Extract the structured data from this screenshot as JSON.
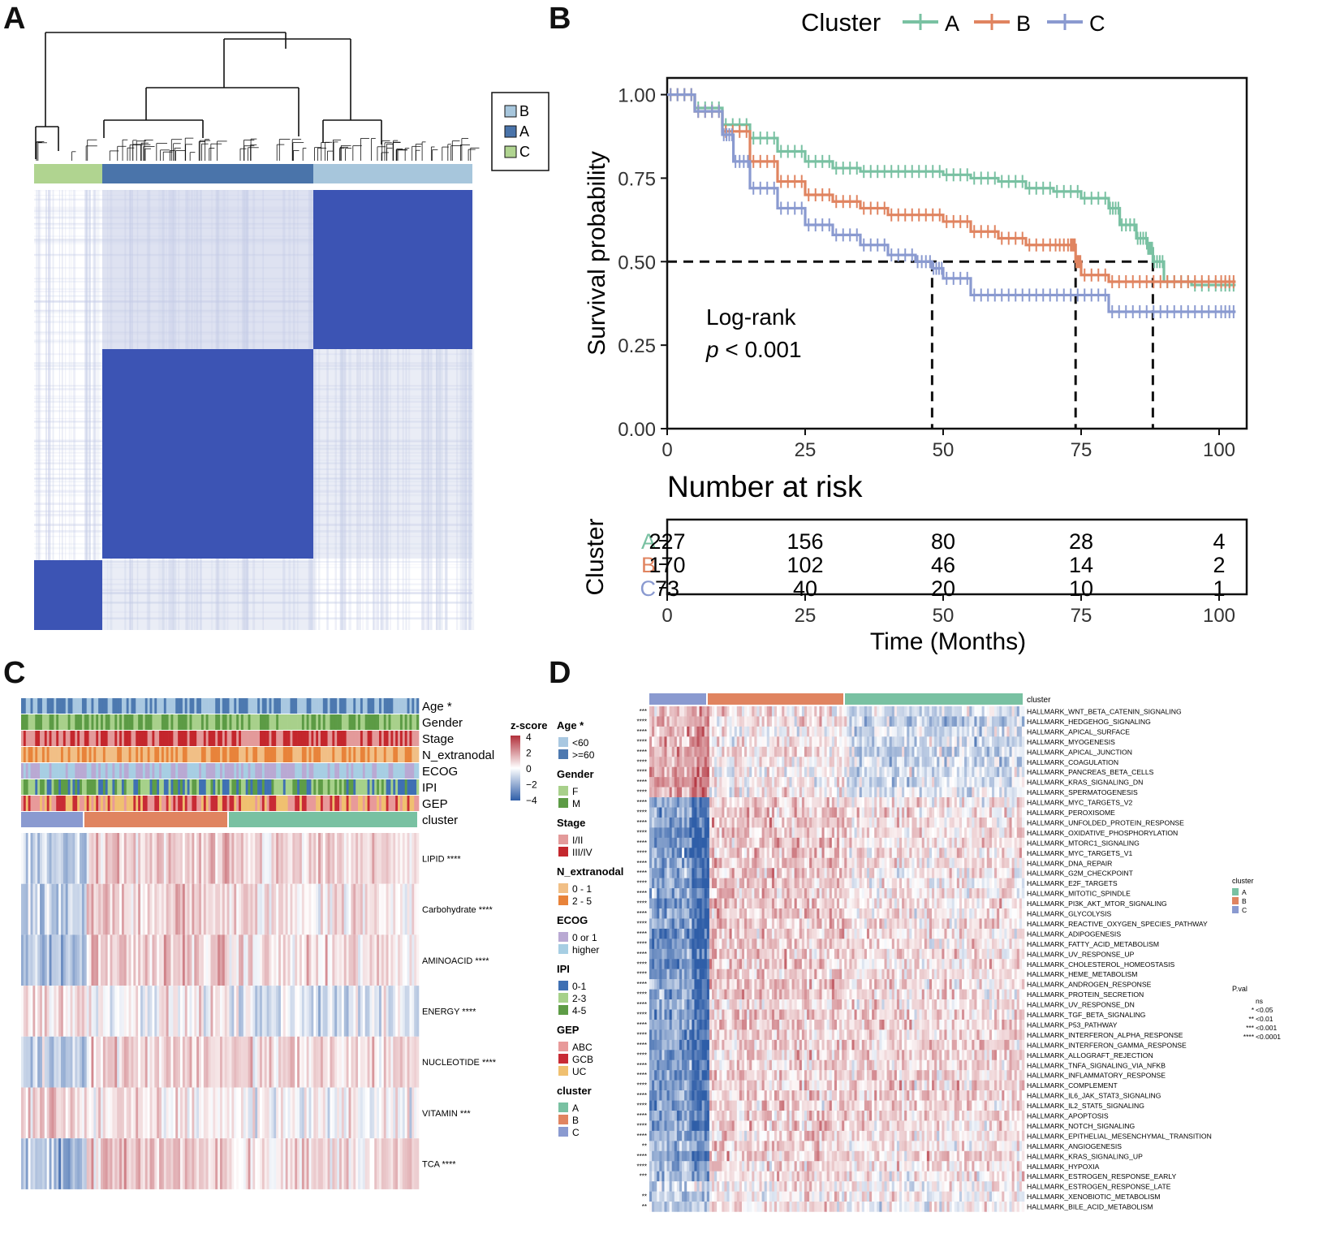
{
  "panels": {
    "a": "A",
    "b": "B",
    "c": "C",
    "d": "D"
  },
  "panel_a": {
    "legend": [
      "B",
      "A",
      "C"
    ]
  },
  "colors": {
    "A": "#79c1a2",
    "B": "#e08460",
    "C": "#8a9ad0",
    "consensus_dark": "#3c54b4",
    "consensus_light": "#c2cae6",
    "a_bar_B": "#a7c6dc",
    "a_bar_A": "#4a74aa",
    "a_bar_C": "#b0d490",
    "heat_red": "#b12f3a",
    "heat_blue": "#2f5ea8"
  },
  "chart_data": [
    {
      "type": "line",
      "legend": {
        "title": "Cluster",
        "entries": [
          "A",
          "B",
          "C"
        ],
        "position": "top"
      },
      "ylabel": "Survival probability",
      "yticks": [
        "0.00",
        "0.25",
        "0.50",
        "0.75",
        "1.00"
      ],
      "ylim": [
        0,
        1.05
      ],
      "xlim": [
        0,
        105
      ],
      "xticks": [
        "0",
        "25",
        "50",
        "75",
        "100"
      ],
      "annotation": {
        "line1": "Log-rank",
        "p_prefix": "p",
        "p_text": " < 0.001"
      },
      "medians": [
        48,
        74,
        88
      ],
      "series": [
        {
          "name": "A",
          "x": [
            0,
            5,
            10,
            15,
            20,
            25,
            30,
            35,
            40,
            45,
            50,
            55,
            60,
            65,
            70,
            75,
            80,
            82,
            85,
            87,
            88,
            90,
            95,
            100,
            103
          ],
          "y": [
            1,
            0.96,
            0.91,
            0.87,
            0.83,
            0.8,
            0.78,
            0.77,
            0.77,
            0.77,
            0.76,
            0.75,
            0.74,
            0.72,
            0.71,
            0.69,
            0.66,
            0.61,
            0.57,
            0.54,
            0.5,
            0.44,
            0.43,
            0.43,
            0.43
          ]
        },
        {
          "name": "B",
          "x": [
            0,
            5,
            10,
            15,
            20,
            25,
            30,
            35,
            40,
            45,
            50,
            55,
            60,
            65,
            70,
            73,
            74,
            75,
            80,
            85,
            90,
            95,
            100,
            103
          ],
          "y": [
            1,
            0.95,
            0.89,
            0.8,
            0.74,
            0.7,
            0.68,
            0.66,
            0.64,
            0.64,
            0.62,
            0.59,
            0.57,
            0.55,
            0.55,
            0.55,
            0.5,
            0.46,
            0.44,
            0.44,
            0.44,
            0.44,
            0.44,
            0.44
          ]
        },
        {
          "name": "C",
          "x": [
            0,
            5,
            10,
            12,
            15,
            20,
            25,
            30,
            35,
            40,
            45,
            48,
            50,
            55,
            60,
            65,
            70,
            75,
            80,
            85,
            90,
            95,
            100,
            103
          ],
          "y": [
            1,
            0.95,
            0.88,
            0.8,
            0.72,
            0.66,
            0.61,
            0.58,
            0.55,
            0.52,
            0.5,
            0.48,
            0.45,
            0.4,
            0.4,
            0.4,
            0.4,
            0.4,
            0.35,
            0.35,
            0.35,
            0.35,
            0.35,
            0.35
          ]
        }
      ]
    },
    {
      "type": "table",
      "title": "Number at risk",
      "ylabel": "Cluster",
      "xlabel": "Time (Months)",
      "xticks": [
        "0",
        "25",
        "50",
        "75",
        "100"
      ],
      "rows": [
        {
          "name": "A",
          "values": [
            "227",
            "156",
            "80",
            "28",
            "4"
          ]
        },
        {
          "name": "B",
          "values": [
            "170",
            "102",
            "46",
            "14",
            "2"
          ]
        },
        {
          "name": "C",
          "values": [
            "73",
            "40",
            "20",
            "10",
            "1"
          ]
        }
      ]
    },
    {
      "type": "heatmap",
      "annotations": [
        "Age *",
        "Gender",
        "Stage",
        "N_extranodal",
        "ECOG",
        "IPI",
        "GEP",
        "cluster"
      ],
      "rows": [
        {
          "label": "LIPID ****",
          "cluster_means": [
            -0.8,
            0.5,
            0.4
          ]
        },
        {
          "label": "Carbohydrate ****",
          "cluster_means": [
            -0.9,
            0.6,
            0.3
          ]
        },
        {
          "label": "AMINOACID ****",
          "cluster_means": [
            -1.0,
            0.6,
            0.3
          ]
        },
        {
          "label": "ENERGY ****",
          "cluster_means": [
            0.4,
            0.1,
            -0.4
          ]
        },
        {
          "label": "NUCLEOTIDE ****",
          "cluster_means": [
            -0.7,
            0.6,
            0.4
          ]
        },
        {
          "label": "VITAMIN ***",
          "cluster_means": [
            0.6,
            0.2,
            0.0
          ]
        },
        {
          "label": "TCA ****",
          "cluster_means": [
            -1.0,
            0.7,
            0.4
          ]
        }
      ],
      "zscore": {
        "title": "z-score",
        "ticks": [
          "4",
          "2",
          "0",
          "−2",
          "−4"
        ]
      },
      "legends": [
        {
          "title": "Age *",
          "items": [
            {
              "label": "<60",
              "color": "#a9c8e1"
            },
            {
              "label": ">=60",
              "color": "#4d79b0"
            }
          ]
        },
        {
          "title": "Gender",
          "items": [
            {
              "label": "F",
              "color": "#a8d08b"
            },
            {
              "label": "M",
              "color": "#5c9b45"
            }
          ]
        },
        {
          "title": "Stage",
          "items": [
            {
              "label": "I/II",
              "color": "#e39a9a"
            },
            {
              "label": "III/IV",
              "color": "#c4272d"
            }
          ]
        },
        {
          "title": "N_extranodal",
          "items": [
            {
              "label": "0 - 1",
              "color": "#f1bf86"
            },
            {
              "label": "2 - 5",
              "color": "#e8833a"
            }
          ]
        },
        {
          "title": "ECOG",
          "items": [
            {
              "label": "0 or 1",
              "color": "#b9a9d3"
            },
            {
              "label": "higher",
              "color": "#a7cee3"
            }
          ]
        },
        {
          "title": "IPI",
          "items": [
            {
              "label": "0-1",
              "color": "#3f70b3"
            },
            {
              "label": "2-3",
              "color": "#a6d18a"
            },
            {
              "label": "4-5",
              "color": "#5e9c46"
            }
          ]
        },
        {
          "title": "GEP",
          "items": [
            {
              "label": "ABC",
              "color": "#e89a9a"
            },
            {
              "label": "GCB",
              "color": "#c82b35"
            },
            {
              "label": "UC",
              "color": "#f0c070"
            }
          ]
        },
        {
          "title": "cluster",
          "items": [
            {
              "label": "A",
              "color": "#79c1a2"
            },
            {
              "label": "B",
              "color": "#e08460"
            },
            {
              "label": "C",
              "color": "#8a9ad0"
            }
          ]
        }
      ]
    },
    {
      "type": "heatmap",
      "cluster_label": "cluster",
      "rows": [
        {
          "label": "HALLMARK_WNT_BETA_CATENIN_SIGNALING",
          "sig": "***",
          "m": [
            0.4,
            0.2,
            -0.3
          ]
        },
        {
          "label": "HALLMARK_HEDGEHOG_SIGNALING",
          "sig": "****",
          "m": [
            0.5,
            0.2,
            -0.4
          ]
        },
        {
          "label": "HALLMARK_APICAL_SURFACE",
          "sig": "****",
          "m": [
            0.5,
            0.1,
            -0.3
          ]
        },
        {
          "label": "HALLMARK_MYOGENESIS",
          "sig": "****",
          "m": [
            0.6,
            0.1,
            -0.4
          ]
        },
        {
          "label": "HALLMARK_APICAL_JUNCTION",
          "sig": "****",
          "m": [
            0.5,
            0.2,
            -0.4
          ]
        },
        {
          "label": "HALLMARK_COAGULATION",
          "sig": "****",
          "m": [
            0.5,
            0.1,
            -0.3
          ]
        },
        {
          "label": "HALLMARK_PANCREAS_BETA_CELLS",
          "sig": "****",
          "m": [
            0.7,
            0.0,
            -0.3
          ]
        },
        {
          "label": "HALLMARK_KRAS_SIGNALING_DN",
          "sig": "****",
          "m": [
            0.7,
            0.1,
            -0.3
          ]
        },
        {
          "label": "HALLMARK_SPERMATOGENESIS",
          "sig": "****",
          "m": [
            0.6,
            0.1,
            -0.2
          ]
        },
        {
          "label": "HALLMARK_MYC_TARGETS_V2",
          "sig": "****",
          "m": [
            -0.9,
            0.4,
            0.2
          ]
        },
        {
          "label": "HALLMARK_PEROXISOME",
          "sig": "****",
          "m": [
            -0.9,
            0.4,
            0.2
          ]
        },
        {
          "label": "HALLMARK_UNFOLDED_PROTEIN_RESPONSE",
          "sig": "****",
          "m": [
            -0.9,
            0.4,
            0.2
          ]
        },
        {
          "label": "HALLMARK_OXIDATIVE_PHOSPHORYLATION",
          "sig": "****",
          "m": [
            -1.0,
            0.4,
            0.2
          ]
        },
        {
          "label": "HALLMARK_MTORC1_SIGNALING",
          "sig": "****",
          "m": [
            -1.0,
            0.4,
            0.2
          ]
        },
        {
          "label": "HALLMARK_MYC_TARGETS_V1",
          "sig": "****",
          "m": [
            -0.9,
            0.4,
            0.2
          ]
        },
        {
          "label": "HALLMARK_DNA_REPAIR",
          "sig": "****",
          "m": [
            -0.9,
            0.4,
            0.2
          ]
        },
        {
          "label": "HALLMARK_G2M_CHECKPOINT",
          "sig": "****",
          "m": [
            -0.9,
            0.4,
            0.1
          ]
        },
        {
          "label": "HALLMARK_E2F_TARGETS",
          "sig": "****",
          "m": [
            -0.9,
            0.4,
            0.1
          ]
        },
        {
          "label": "HALLMARK_MITOTIC_SPINDLE",
          "sig": "****",
          "m": [
            -0.8,
            0.3,
            0.2
          ]
        },
        {
          "label": "HALLMARK_PI3K_AKT_MTOR_SIGNALING",
          "sig": "****",
          "m": [
            -0.9,
            0.4,
            0.2
          ]
        },
        {
          "label": "HALLMARK_GLYCOLYSIS",
          "sig": "****",
          "m": [
            -0.9,
            0.4,
            0.2
          ]
        },
        {
          "label": "HALLMARK_REACTIVE_OXYGEN_SPECIES_PATHWAY",
          "sig": "****",
          "m": [
            -0.9,
            0.4,
            0.2
          ]
        },
        {
          "label": "HALLMARK_ADIPOGENESIS",
          "sig": "****",
          "m": [
            -1.0,
            0.4,
            0.2
          ]
        },
        {
          "label": "HALLMARK_FATTY_ACID_METABOLISM",
          "sig": "****",
          "m": [
            -1.0,
            0.4,
            0.2
          ]
        },
        {
          "label": "HALLMARK_UV_RESPONSE_UP",
          "sig": "****",
          "m": [
            -0.9,
            0.4,
            0.2
          ]
        },
        {
          "label": "HALLMARK_CHOLESTEROL_HOMEOSTASIS",
          "sig": "****",
          "m": [
            -0.9,
            0.4,
            0.2
          ]
        },
        {
          "label": "HALLMARK_HEME_METABOLISM",
          "sig": "****",
          "m": [
            -0.9,
            0.4,
            0.2
          ]
        },
        {
          "label": "HALLMARK_ANDROGEN_RESPONSE",
          "sig": "****",
          "m": [
            -0.9,
            0.4,
            0.2
          ]
        },
        {
          "label": "HALLMARK_PROTEIN_SECRETION",
          "sig": "****",
          "m": [
            -0.9,
            0.4,
            0.2
          ]
        },
        {
          "label": "HALLMARK_UV_RESPONSE_DN",
          "sig": "****",
          "m": [
            -0.8,
            0.3,
            0.2
          ]
        },
        {
          "label": "HALLMARK_TGF_BETA_SIGNALING",
          "sig": "****",
          "m": [
            -0.9,
            0.4,
            0.3
          ]
        },
        {
          "label": "HALLMARK_P53_PATHWAY",
          "sig": "****",
          "m": [
            -0.9,
            0.4,
            0.3
          ]
        },
        {
          "label": "HALLMARK_INTERFERON_ALPHA_RESPONSE",
          "sig": "****",
          "m": [
            -0.9,
            0.3,
            0.3
          ]
        },
        {
          "label": "HALLMARK_INTERFERON_GAMMA_RESPONSE",
          "sig": "****",
          "m": [
            -0.9,
            0.3,
            0.3
          ]
        },
        {
          "label": "HALLMARK_ALLOGRAFT_REJECTION",
          "sig": "****",
          "m": [
            -0.9,
            0.3,
            0.3
          ]
        },
        {
          "label": "HALLMARK_TNFA_SIGNALING_VIA_NFKB",
          "sig": "****",
          "m": [
            -0.9,
            0.3,
            0.3
          ]
        },
        {
          "label": "HALLMARK_INFLAMMATORY_RESPONSE",
          "sig": "****",
          "m": [
            -0.9,
            0.3,
            0.3
          ]
        },
        {
          "label": "HALLMARK_COMPLEMENT",
          "sig": "****",
          "m": [
            -0.9,
            0.3,
            0.3
          ]
        },
        {
          "label": "HALLMARK_IL6_JAK_STAT3_SIGNALING",
          "sig": "****",
          "m": [
            -0.9,
            0.3,
            0.3
          ]
        },
        {
          "label": "HALLMARK_IL2_STAT5_SIGNALING",
          "sig": "****",
          "m": [
            -0.9,
            0.3,
            0.3
          ]
        },
        {
          "label": "HALLMARK_APOPTOSIS",
          "sig": "****",
          "m": [
            -0.9,
            0.3,
            0.3
          ]
        },
        {
          "label": "HALLMARK_NOTCH_SIGNALING",
          "sig": "****",
          "m": [
            -0.8,
            0.3,
            0.2
          ]
        },
        {
          "label": "HALLMARK_EPITHELIAL_MESENCHYMAL_TRANSITION",
          "sig": "****",
          "m": [
            -0.7,
            0.3,
            0.2
          ]
        },
        {
          "label": "HALLMARK_ANGIOGENESIS",
          "sig": "**",
          "m": [
            -0.5,
            0.3,
            0.1
          ]
        },
        {
          "label": "HALLMARK_KRAS_SIGNALING_UP",
          "sig": "****",
          "m": [
            -0.8,
            0.3,
            0.3
          ]
        },
        {
          "label": "HALLMARK_HYPOXIA",
          "sig": "****",
          "m": [
            -0.7,
            0.3,
            0.2
          ]
        },
        {
          "label": "HALLMARK_ESTROGEN_RESPONSE_EARLY",
          "sig": "***",
          "m": [
            -0.6,
            0.3,
            0.1
          ]
        },
        {
          "label": "HALLMARK_ESTROGEN_RESPONSE_LATE",
          "sig": "",
          "m": [
            -0.2,
            0.1,
            0.0
          ]
        },
        {
          "label": "HALLMARK_XENOBIOTIC_METABOLISM",
          "sig": "**",
          "m": [
            -0.5,
            0.2,
            0.1
          ]
        },
        {
          "label": "HALLMARK_BILE_ACID_METABOLISM",
          "sig": "**",
          "m": [
            -0.4,
            0.2,
            0.0
          ]
        }
      ],
      "legend_cluster": {
        "title": "cluster",
        "items": [
          "A",
          "B",
          "C"
        ]
      },
      "legend_pval": {
        "title": "P.val",
        "rows": [
          {
            "sym": "",
            "label": "ns"
          },
          {
            "sym": "*",
            "label": "<0.05"
          },
          {
            "sym": "**",
            "label": "<0.01"
          },
          {
            "sym": "***",
            "label": "<0.001"
          },
          {
            "sym": "****",
            "label": "<0.0001"
          }
        ]
      }
    }
  ]
}
